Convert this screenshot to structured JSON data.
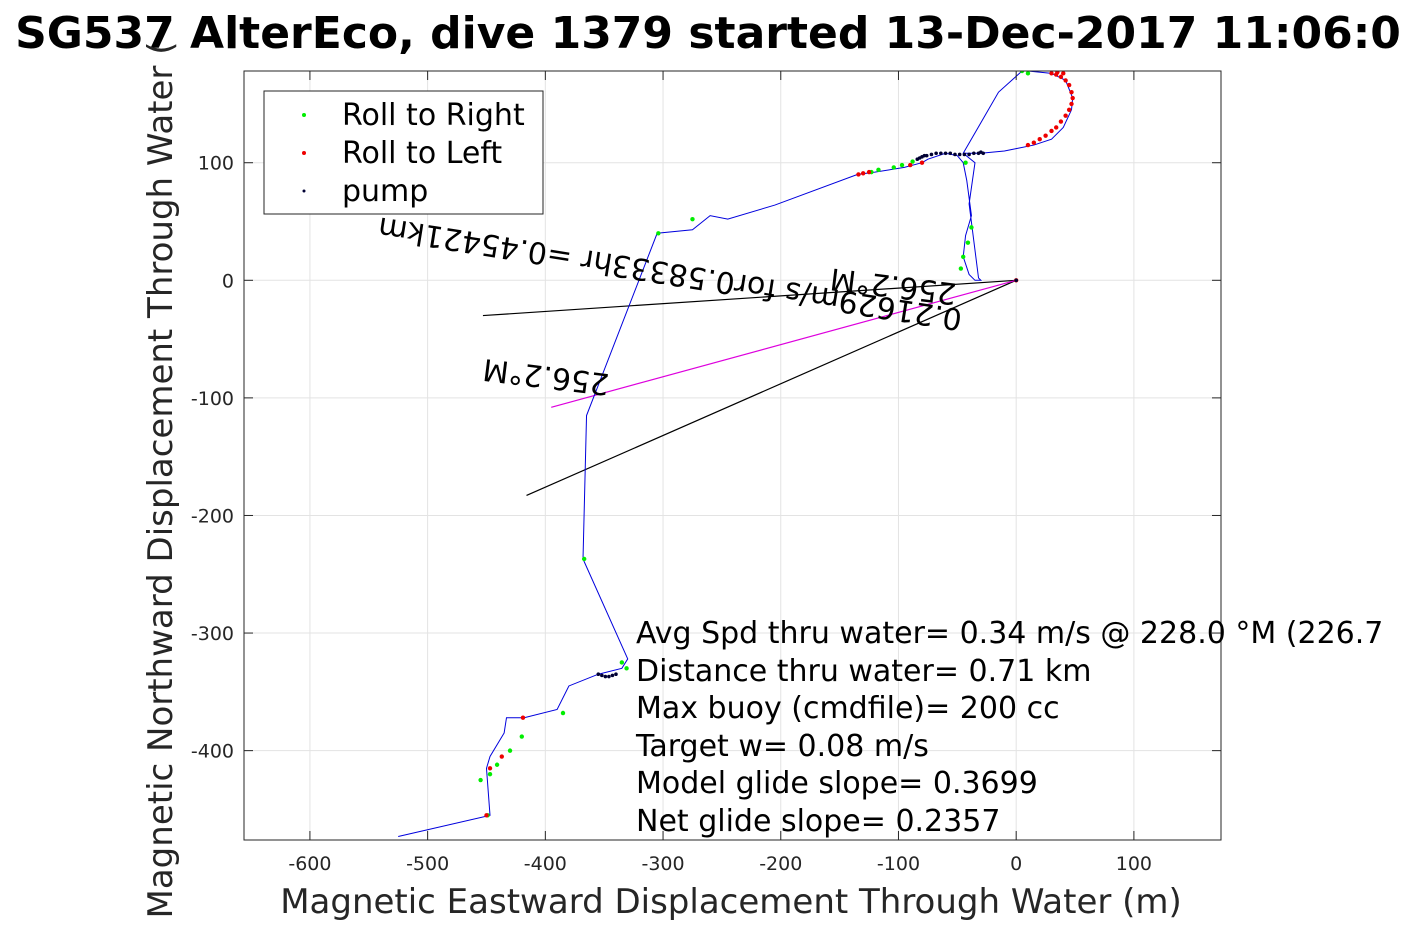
{
  "chart_data": {
    "type": "line",
    "title": "SG537 AlterEco, dive 1379 started 13-Dec-2017 11:06:0",
    "xlabel": "Magnetic Eastward Displacement Through Water (m)",
    "ylabel": "Magnetic Northward Displacement Through Water (",
    "xlim": [
      -656,
      174
    ],
    "ylim": [
      -476,
      178
    ],
    "xticks": [
      -600,
      -500,
      -400,
      -300,
      -200,
      -100,
      0,
      100
    ],
    "yticks": [
      -400,
      -300,
      -200,
      -100,
      0,
      100
    ],
    "grid": true,
    "legend_position": "top-left",
    "legend": [
      {
        "label": "Roll to Right",
        "color": "#00ee00"
      },
      {
        "label": "Roll to Left",
        "color": "#ee0000"
      },
      {
        "label": "pump",
        "color": "#000033"
      }
    ],
    "track": {
      "color": "#0000dd",
      "x": [
        -525,
        -447,
        -450,
        -447,
        -435,
        -433,
        -418,
        -390,
        -380,
        -355,
        -335,
        -330,
        -368,
        -365,
        -305,
        -275,
        -260,
        -245,
        -205,
        -135,
        -120,
        -95,
        -80,
        -75,
        -60,
        -50,
        -45,
        -42,
        -38,
        -43,
        -45,
        -40,
        -35,
        -30,
        -32,
        -40,
        -35,
        -45,
        -15,
        5,
        10,
        30,
        42,
        48,
        47,
        40,
        30,
        15,
        0,
        -10,
        -20,
        -30,
        -45
      ],
      "y": [
        -473,
        -455,
        -415,
        -405,
        -385,
        -372,
        -372,
        -365,
        -345,
        -335,
        -330,
        -322,
        -237,
        -115,
        40,
        43,
        55,
        52,
        64,
        90,
        92,
        96,
        100,
        103,
        108,
        106,
        100,
        85,
        55,
        38,
        20,
        5,
        0,
        0,
        2,
        65,
        100,
        108,
        160,
        178,
        178,
        176,
        170,
        155,
        145,
        130,
        120,
        115,
        112,
        110,
        109,
        108,
        108
      ]
    },
    "roll_right": {
      "x": [
        -449,
        -447,
        -441,
        -430,
        -420,
        -385,
        -335,
        -331,
        -367,
        -304,
        -275,
        -123,
        -117,
        -104,
        -97,
        -88,
        -45,
        -47,
        -43,
        -38,
        -41,
        5,
        10,
        -455
      ],
      "y": [
        -455,
        -420,
        -412,
        -400,
        -388,
        -368,
        -325,
        -330,
        -237,
        40,
        52,
        92,
        94,
        96,
        98,
        101,
        20,
        10,
        100,
        45,
        32,
        178,
        176,
        -425
      ]
    },
    "roll_left": {
      "x": [
        -450,
        -447,
        -437,
        -419,
        -134,
        -130,
        -125,
        -90,
        -80,
        0,
        30,
        34,
        38,
        42,
        45,
        47,
        48,
        47,
        45,
        42,
        38,
        34,
        30,
        25,
        20,
        15,
        10,
        40,
        35
      ],
      "y": [
        -455,
        -415,
        -405,
        -372,
        90,
        91,
        92,
        98,
        100,
        0,
        176,
        175,
        173,
        170,
        166,
        160,
        155,
        150,
        145,
        140,
        135,
        130,
        127,
        123,
        120,
        117,
        115,
        176,
        177
      ],
      "line_x": [
        -395,
        0
      ],
      "line_y": [
        -108,
        0
      ]
    },
    "pump": {
      "x": [
        -355,
        -352,
        -349,
        -346,
        -343,
        -340,
        -84,
        -80,
        -76,
        -72,
        -68,
        -64,
        -60,
        -56,
        -52,
        -48,
        -44,
        -40,
        -36,
        -32,
        -28,
        -82,
        -78,
        -30,
        0
      ],
      "y": [
        -335,
        -336,
        -337,
        -337,
        -336,
        -335,
        103,
        105,
        106,
        107,
        108,
        108,
        108,
        108,
        107,
        107,
        107,
        107,
        108,
        108,
        108,
        104,
        106,
        109,
        0
      ]
    },
    "direction_lines": [
      {
        "x": [
          -453,
          0
        ],
        "y": [
          -30,
          0
        ]
      },
      {
        "x": [
          -416,
          0
        ],
        "y": [
          -183,
          0
        ]
      }
    ],
    "current_labels": [
      {
        "text": "256.2°M",
        "x": -50,
        "y": -3,
        "angle_deg": 7
      },
      {
        "text": "0.21629m/s for0.58333hr =0.45421km",
        "x": -45,
        "y": -25,
        "angle_deg": 9
      },
      {
        "text": "256.2°M",
        "x": -345,
        "y": -80,
        "angle_deg": 7
      }
    ],
    "annotations": [
      "Avg Spd thru water=  0.34 m/s @ 228.0 °M (226.7",
      "Distance thru water=  0.71 km",
      "Max buoy (cmdfile)= 200 cc",
      "Target w= 0.08 m/s",
      "Model glide slope= 0.3699",
      "Net glide slope= 0.2357"
    ]
  }
}
